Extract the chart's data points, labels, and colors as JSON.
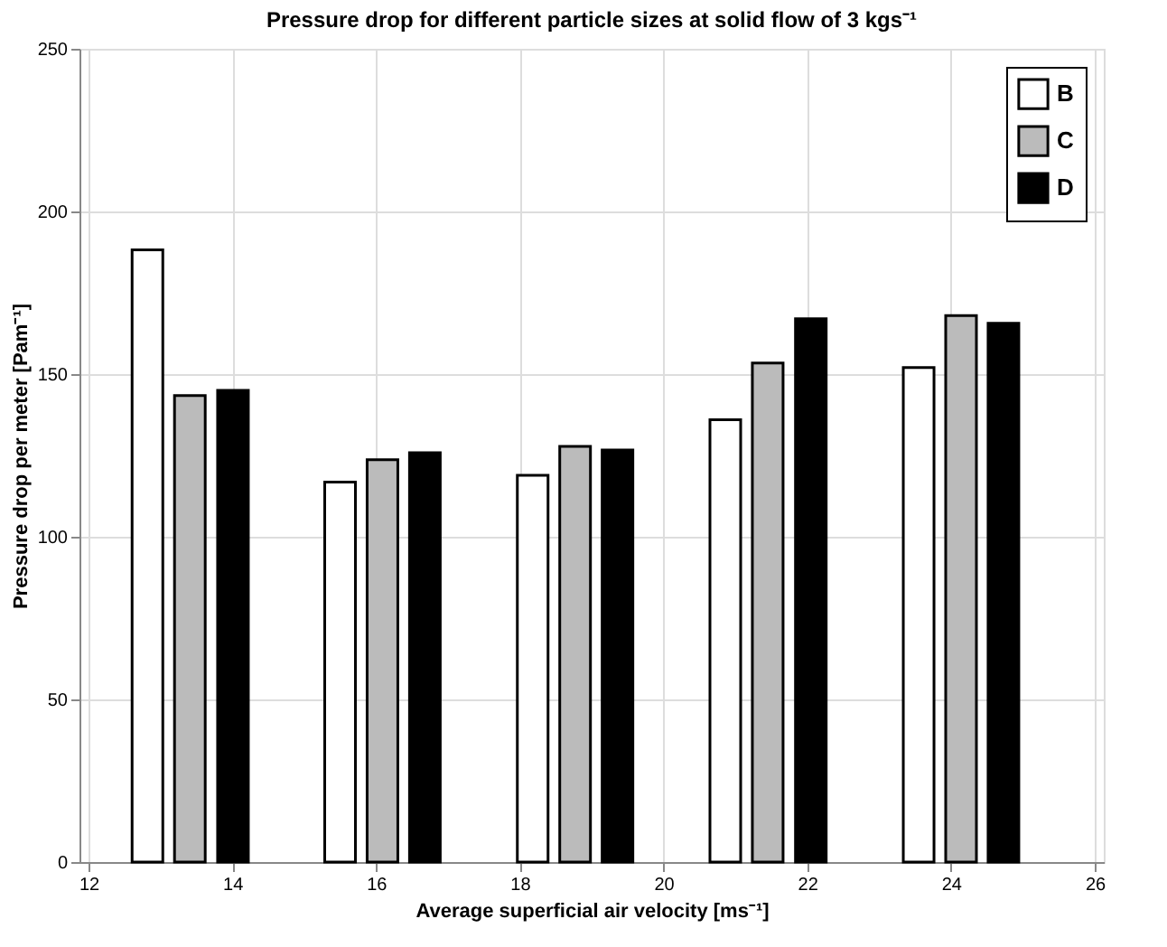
{
  "chart_data": {
    "type": "bar",
    "title": "Pressure drop for different particle sizes at solid flow of 3 kgs⁻¹",
    "xlabel": "Average superficial air velocity [ms⁻¹]",
    "ylabel": "Pressure drop per meter [Pam⁻¹]",
    "series": [
      {
        "name": "B",
        "color": "#ffffff",
        "x": [
          12.82,
          15.5,
          18.18,
          20.86,
          23.55
        ],
        "values": [
          188.2,
          116.8,
          118.9,
          136,
          152
        ]
      },
      {
        "name": "C",
        "color": "#bbbbbb",
        "x": [
          13.41,
          16.09,
          18.77,
          21.45,
          24.14
        ],
        "values": [
          143.4,
          123.7,
          127.8,
          153.4,
          168
        ]
      },
      {
        "name": "D",
        "color": "#000000",
        "x": [
          14.01,
          16.68,
          19.36,
          22.05,
          24.73
        ],
        "values": [
          145,
          125.8,
          126.7,
          167,
          165.6
        ]
      }
    ],
    "xlim": [
      12,
      26
    ],
    "xticks": [
      12,
      14,
      16,
      18,
      20,
      22,
      24,
      26
    ],
    "ylim": [
      0,
      250
    ],
    "yticks": [
      0,
      50,
      100,
      150,
      200,
      250
    ],
    "grid": true,
    "legend": "top right"
  }
}
